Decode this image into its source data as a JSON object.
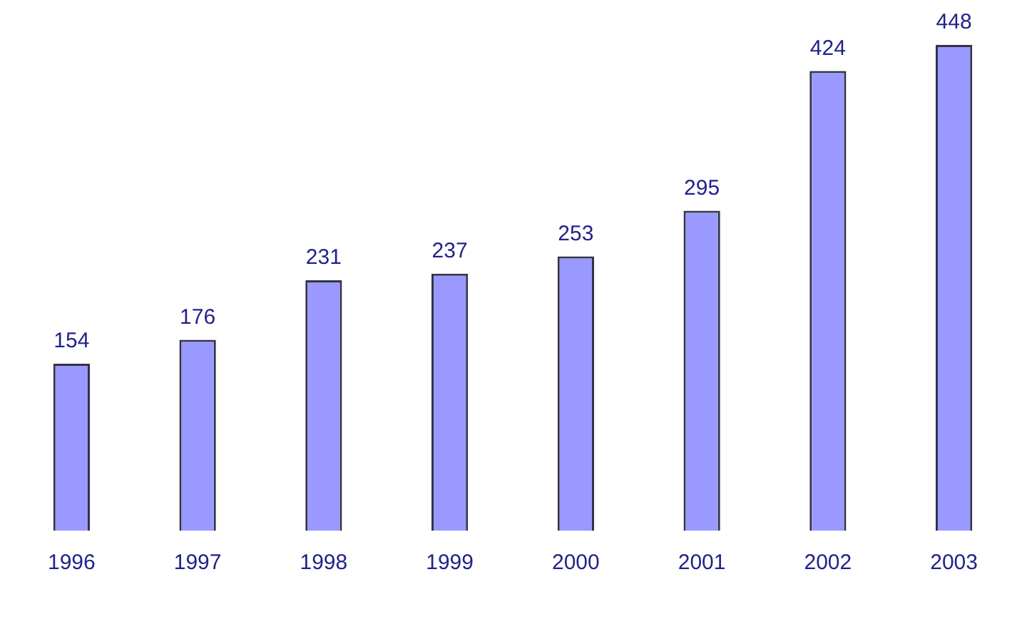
{
  "chart_data": {
    "type": "bar",
    "categories": [
      "1996",
      "1997",
      "1998",
      "1999",
      "2000",
      "2001",
      "2002",
      "2003"
    ],
    "values": [
      154,
      176,
      231,
      237,
      253,
      295,
      424,
      448
    ],
    "color": "#9999ff",
    "tick_labels": "x",
    "data_labels": true,
    "grid": false,
    "legend": false
  }
}
